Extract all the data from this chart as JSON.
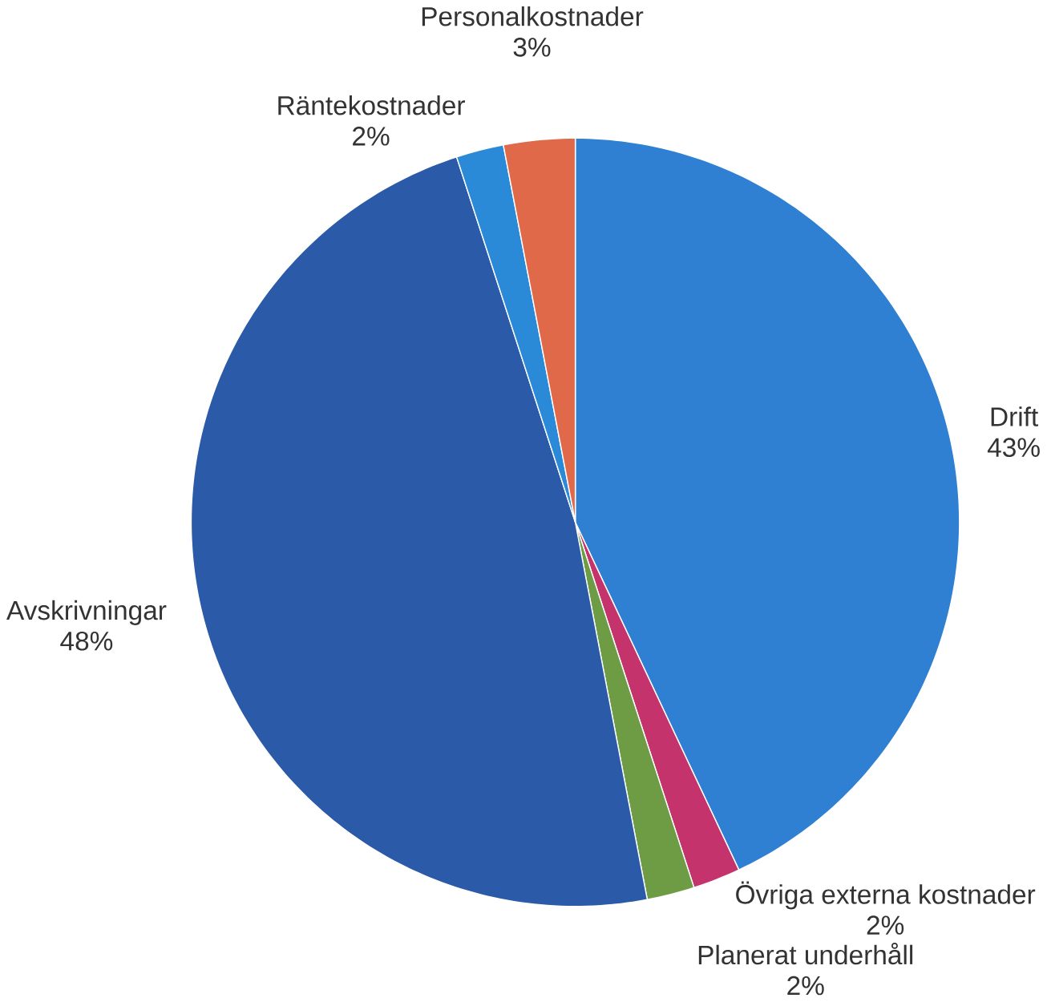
{
  "chart_data": {
    "type": "pie",
    "categories": [
      "Drift",
      "Övriga externa kostnader",
      "Planerat underhåll",
      "Avskrivningar",
      "Räntekostnader",
      "Personalkostnader"
    ],
    "values": [
      43,
      2,
      2,
      48,
      2,
      3
    ],
    "value_labels": [
      "43%",
      "2%",
      "2%",
      "48%",
      "2%",
      "3%"
    ],
    "colors": [
      "#2f80d2",
      "#c4336c",
      "#6e9c44",
      "#2b5aa8",
      "#2a8ad8",
      "#e0694a"
    ]
  }
}
